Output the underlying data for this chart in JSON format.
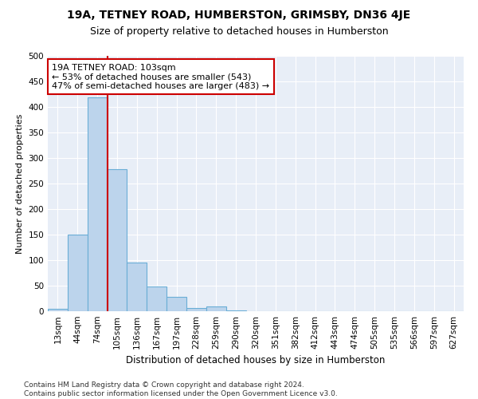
{
  "title": "19A, TETNEY ROAD, HUMBERSTON, GRIMSBY, DN36 4JE",
  "subtitle": "Size of property relative to detached houses in Humberston",
  "xlabel": "Distribution of detached houses by size in Humberston",
  "ylabel": "Number of detached properties",
  "categories": [
    "13sqm",
    "44sqm",
    "74sqm",
    "105sqm",
    "136sqm",
    "167sqm",
    "197sqm",
    "228sqm",
    "259sqm",
    "290sqm",
    "320sqm",
    "351sqm",
    "382sqm",
    "412sqm",
    "443sqm",
    "474sqm",
    "505sqm",
    "535sqm",
    "566sqm",
    "597sqm",
    "627sqm"
  ],
  "values": [
    5,
    150,
    418,
    278,
    95,
    48,
    28,
    7,
    10,
    2,
    0,
    0,
    0,
    0,
    0,
    0,
    0,
    0,
    0,
    0,
    0
  ],
  "bar_color": "#bcd4ec",
  "bar_edgecolor": "#6aaed6",
  "bar_linewidth": 0.8,
  "redline_x": 2.5,
  "annotation_text": "19A TETNEY ROAD: 103sqm\n← 53% of detached houses are smaller (543)\n47% of semi-detached houses are larger (483) →",
  "annotation_box_facecolor": "#ffffff",
  "annotation_box_edgecolor": "#cc0000",
  "background_color": "#e8eef7",
  "grid_color": "#ffffff",
  "ylim": [
    0,
    500
  ],
  "yticks": [
    0,
    50,
    100,
    150,
    200,
    250,
    300,
    350,
    400,
    450,
    500
  ],
  "footnote": "Contains HM Land Registry data © Crown copyright and database right 2024.\nContains public sector information licensed under the Open Government Licence v3.0.",
  "title_fontsize": 10,
  "subtitle_fontsize": 9,
  "xlabel_fontsize": 8.5,
  "ylabel_fontsize": 8,
  "tick_fontsize": 7.5,
  "annotation_fontsize": 8,
  "footnote_fontsize": 6.5
}
